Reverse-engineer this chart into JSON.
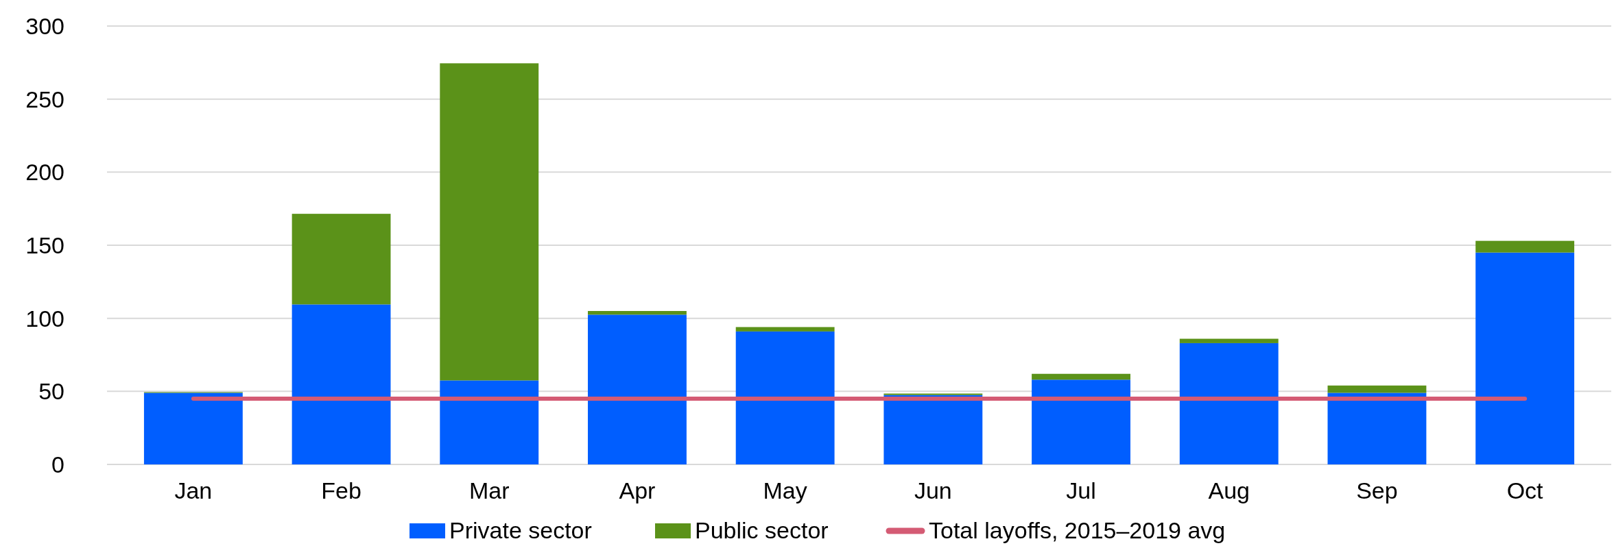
{
  "chart_data": {
    "type": "bar",
    "stacked": true,
    "categories": [
      "Jan",
      "Feb",
      "Mar",
      "Apr",
      "May",
      "Jun",
      "Jul",
      "Aug",
      "Sep",
      "Oct"
    ],
    "series": [
      {
        "name": "Private sector",
        "color": "#005eff",
        "values": [
          49,
          109.5,
          57.5,
          102.5,
          91,
          47.5,
          58,
          83,
          49,
          145
        ]
      },
      {
        "name": "Public sector",
        "color": "#5b9219",
        "values": [
          0.5,
          62,
          217,
          2.5,
          3,
          1,
          4,
          3,
          5,
          8
        ]
      },
      {
        "name": "Total layoffs, 2015–2019 avg",
        "type": "line",
        "color": "#d45b74",
        "values": [
          45,
          45,
          45,
          45,
          45,
          45,
          45,
          45,
          45,
          45
        ]
      }
    ],
    "ylim": [
      0,
      300
    ],
    "yticks": [
      0,
      50,
      100,
      150,
      200,
      250,
      300
    ],
    "grid": "y",
    "legend": "bottom"
  }
}
